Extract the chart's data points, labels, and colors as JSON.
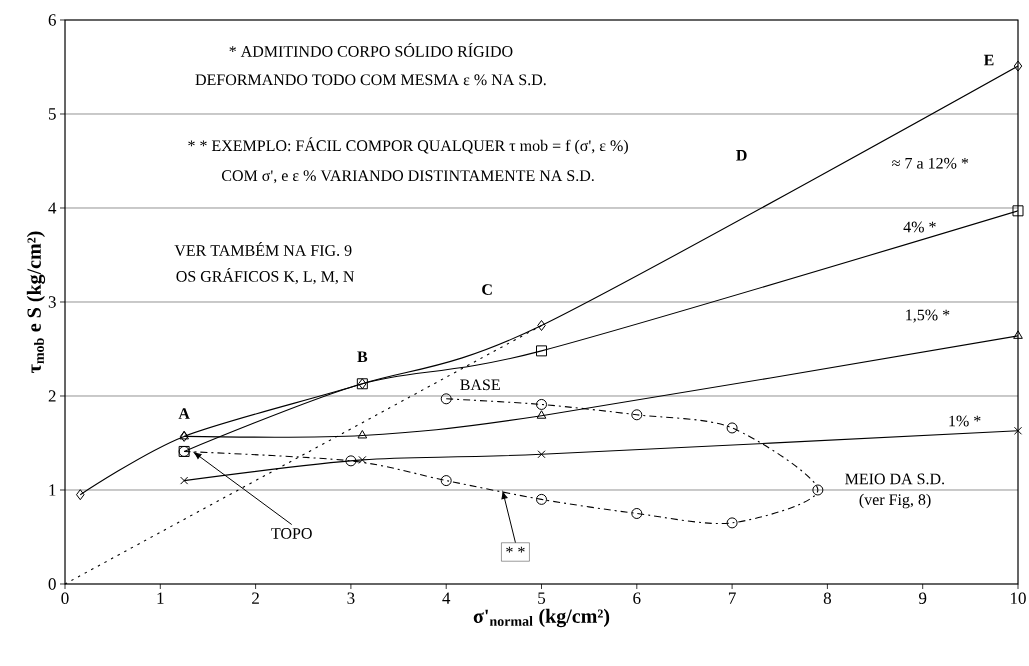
{
  "chart_data": {
    "type": "line",
    "xlabel": "σ'$_{normal}$ (kg/cm²)",
    "ylabel": "τ$_{mob}$ e S (kg/cm²)",
    "xlim": [
      0,
      10
    ],
    "ylim": [
      0,
      6
    ],
    "xticks": [
      0,
      1,
      2,
      3,
      4,
      5,
      6,
      7,
      8,
      9,
      10
    ],
    "yticks": [
      0,
      1,
      2,
      3,
      4,
      5,
      6
    ],
    "grid": "y",
    "series": [
      {
        "name": "≈ 7 a 12% *",
        "color": "#000000",
        "marker": "diamond",
        "line_style": "solid",
        "x": [
          0.16,
          1.25,
          3.12,
          5,
          10
        ],
        "values": [
          0.95,
          1.57,
          2.13,
          2.75,
          5.51
        ]
      },
      {
        "name": "4% *",
        "color": "#000000",
        "marker": "square",
        "line_style": "solid",
        "x": [
          1.25,
          3.12,
          5,
          10
        ],
        "values": [
          1.41,
          2.13,
          2.48,
          3.97
        ]
      },
      {
        "name": "1,5% *",
        "color": "#000000",
        "marker": "triangle",
        "line_style": "solid",
        "x": [
          1.25,
          3.12,
          5,
          10
        ],
        "values": [
          1.57,
          1.58,
          1.79,
          2.64
        ]
      },
      {
        "name": "1% *",
        "color": "#000000",
        "marker": "cross",
        "line_style": "solid",
        "x": [
          1.25,
          3.12,
          5,
          10
        ],
        "values": [
          1.1,
          1.32,
          1.38,
          1.63
        ]
      },
      {
        "color": "#000000",
        "marker": "circle",
        "line_style": "dashed",
        "x": [
          4,
          5,
          6,
          7,
          7.9,
          7,
          6,
          5,
          4,
          3,
          1.25
        ],
        "values": [
          1.97,
          1.91,
          1.8,
          1.66,
          1.0,
          0.65,
          0.75,
          0.9,
          1.1,
          1.31,
          1.41
        ]
      },
      {
        "color": "#000000",
        "marker": "none",
        "line_style": "dotted",
        "x": [
          0,
          5
        ],
        "values": [
          0,
          2.75
        ]
      }
    ],
    "annotations": [
      "* ADMITINDO CORPO SÓLIDO RÍGIDO",
      "DEFORMANDO TODO COM MESMA ε % NA S.D.",
      "* * EXEMPLO: FÁCIL COMPOR QUALQUER τ mob = f (σ', ε %)",
      "COM σ', e ε % VARIANDO DISTINTAMENTE NA S.D.",
      "VER TAMBÉM NA FIG. 9",
      "OS GRÁFICOS K, L, M, N",
      {
        "text": "A",
        "x": 1.25,
        "y": 1.57
      },
      {
        "text": "B",
        "x": 3.12,
        "y": 2.13
      },
      "C",
      "D",
      {
        "text": "E",
        "x": 10,
        "y": 5.51
      },
      {
        "text": "BASE",
        "x": 4,
        "y": 1.97
      },
      {
        "text": "MEIO DA S.D.",
        "x": 7.9,
        "y": 1.0
      },
      "(ver Fig, 8)",
      {
        "text": "TOPO",
        "x": 1.34,
        "y": 1.41
      },
      {
        "text": "* *",
        "x": 4.59,
        "y": 1.0
      }
    ]
  }
}
